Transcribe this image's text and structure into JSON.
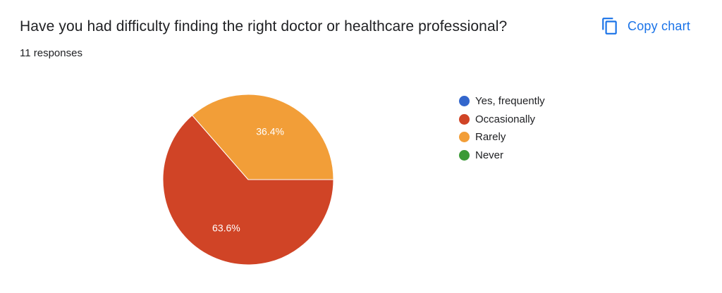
{
  "header": {
    "question": "Have you had difficulty finding the right doctor or healthcare professional?",
    "responses": "11 responses",
    "copy_label": "Copy chart",
    "copy_icon": "copy-icon"
  },
  "chart_data": {
    "type": "pie",
    "title": "Have you had difficulty finding the right doctor or healthcare professional?",
    "categories": [
      "Yes, frequently",
      "Occasionally",
      "Rarely",
      "Never"
    ],
    "values": [
      0,
      63.6,
      36.4,
      0
    ],
    "labels": [
      "",
      "63.6%",
      "36.4%",
      ""
    ],
    "colors": [
      "#3366cc",
      "#d04426",
      "#f29e38",
      "#3b9a36"
    ],
    "legend_position": "right"
  }
}
